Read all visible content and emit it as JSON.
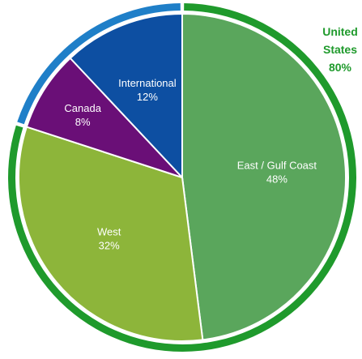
{
  "chart_data": {
    "type": "pie",
    "title": "",
    "slices": [
      {
        "label": "East / Gulf Coast",
        "value": 48,
        "value_label": "48%",
        "color": "#5aa65c"
      },
      {
        "label": "West",
        "value": 32,
        "value_label": "32%",
        "color": "#8db53a"
      },
      {
        "label": "Canada",
        "value": 8,
        "value_label": "8%",
        "color": "#6a0f77"
      },
      {
        "label": "International",
        "value": 12,
        "value_label": "12%",
        "color": "#0d4fa2"
      }
    ],
    "outer_ring": [
      {
        "label_lines": [
          "United",
          "States",
          "80%"
        ],
        "value": 80,
        "color": "#1f9a2c",
        "text_color": "#1f9a2c"
      },
      {
        "label_lines": [],
        "value": 20,
        "color": "#1f7fc8"
      }
    ],
    "start_angle_degrees": 0,
    "direction": "clockwise",
    "legend": "none",
    "grid": false
  }
}
